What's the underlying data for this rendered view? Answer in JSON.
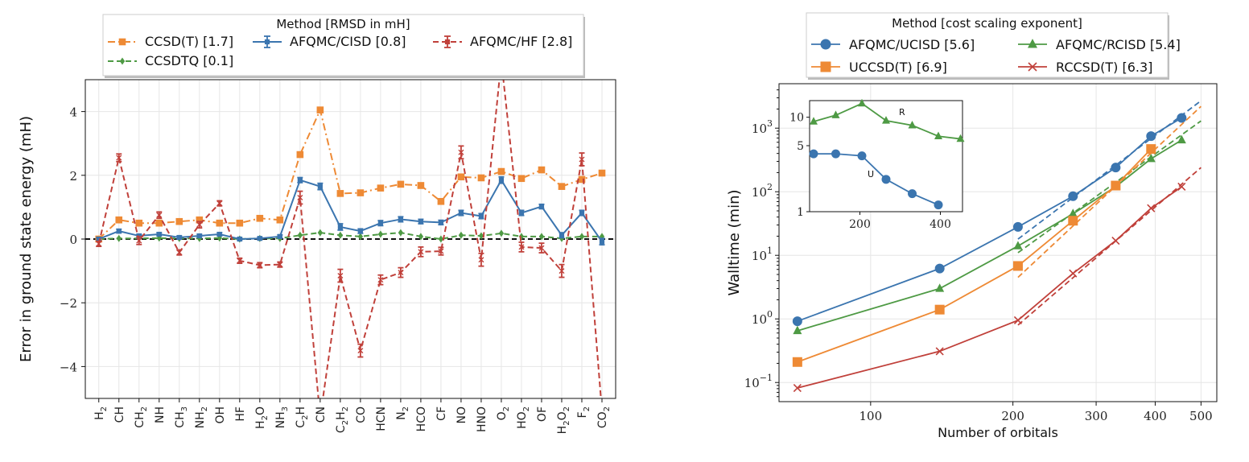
{
  "chart_data": [
    {
      "type": "line",
      "title": "",
      "xlabel": "",
      "ylabel": "Error in ground state energy (mH)",
      "ylim": [
        -5,
        5
      ],
      "yticks": [
        -4,
        -2,
        0,
        2,
        4
      ],
      "ytick_labels": [
        "−4",
        "−2",
        "0",
        "2",
        "4"
      ],
      "grid": true,
      "reference_line": 0,
      "legend": {
        "title": "Method [RMSD in mH]",
        "placement": "top",
        "columns": 3,
        "entries": [
          "CCSD(T) [1.7]",
          "AFQMC/CISD [0.8]",
          "AFQMC/HF [2.8]",
          "CCSDTQ [0.1]"
        ]
      },
      "categories": [
        {
          "base": "H",
          "sub": "2"
        },
        {
          "base": "CH",
          "sub": ""
        },
        {
          "base": "CH",
          "sub": "2"
        },
        {
          "base": "NH",
          "sub": ""
        },
        {
          "base": "CH",
          "sub": "3"
        },
        {
          "base": "NH",
          "sub": "2"
        },
        {
          "base": "OH",
          "sub": ""
        },
        {
          "base": "HF",
          "sub": ""
        },
        {
          "base": "H",
          "sub": "2",
          "tail": "O"
        },
        {
          "base": "NH",
          "sub": "3"
        },
        {
          "base": "C",
          "sub": "2",
          "tail": "H"
        },
        {
          "base": "CN",
          "sub": ""
        },
        {
          "base": "C",
          "sub": "2",
          "tail": "H",
          "sub2": "2"
        },
        {
          "base": "CO",
          "sub": ""
        },
        {
          "base": "HCN",
          "sub": ""
        },
        {
          "base": "N",
          "sub": "2"
        },
        {
          "base": "HCO",
          "sub": ""
        },
        {
          "base": "CF",
          "sub": ""
        },
        {
          "base": "NO",
          "sub": ""
        },
        {
          "base": "HNO",
          "sub": ""
        },
        {
          "base": "O",
          "sub": "2"
        },
        {
          "base": "HO",
          "sub": "2"
        },
        {
          "base": "OF",
          "sub": ""
        },
        {
          "base": "H",
          "sub": "2",
          "tail": "O",
          "sub2": "2"
        },
        {
          "base": "F",
          "sub": "2"
        },
        {
          "base": "CO",
          "sub": "2"
        }
      ],
      "series": [
        {
          "name": "CCSD(T) [1.7]",
          "color": "#ee8a35",
          "marker": "square",
          "dash": "dashdot",
          "values": [
            0.0,
            0.6,
            0.5,
            0.5,
            0.55,
            0.6,
            0.5,
            0.5,
            0.65,
            0.6,
            2.65,
            4.05,
            1.43,
            1.45,
            1.6,
            1.72,
            1.68,
            1.18,
            1.95,
            1.92,
            2.12,
            1.9,
            2.17,
            1.65,
            1.87,
            2.07
          ]
        },
        {
          "name": "AFQMC/CISD [0.8]",
          "color": "#3b75af",
          "marker": "I",
          "dash": "solid",
          "values": [
            0.0,
            0.25,
            0.1,
            0.15,
            0.05,
            0.1,
            0.15,
            0.0,
            0.02,
            0.08,
            1.85,
            1.65,
            0.38,
            0.25,
            0.5,
            0.62,
            0.55,
            0.52,
            0.82,
            0.72,
            1.85,
            0.82,
            1.02,
            0.12,
            0.82,
            -0.08
          ],
          "errors": [
            0.05,
            0.06,
            0.05,
            0.05,
            0.05,
            0.05,
            0.05,
            0.04,
            0.04,
            0.05,
            0.08,
            0.1,
            0.1,
            0.07,
            0.08,
            0.08,
            0.07,
            0.07,
            0.08,
            0.08,
            0.1,
            0.08,
            0.07,
            0.08,
            0.08,
            0.1
          ]
        },
        {
          "name": "AFQMC/HF [2.8]",
          "color": "#c0403a",
          "marker": "I",
          "dash": "dashed",
          "values": [
            -0.15,
            2.55,
            -0.05,
            0.75,
            -0.42,
            0.45,
            1.12,
            -0.68,
            -0.82,
            -0.8,
            1.3,
            -5.6,
            -1.15,
            -3.5,
            -1.28,
            -1.05,
            -0.4,
            -0.38,
            2.72,
            -0.65,
            5.6,
            -0.25,
            -0.28,
            -1.0,
            2.5,
            -5.4
          ],
          "errors": [
            0.08,
            0.12,
            0.12,
            0.1,
            0.08,
            0.1,
            0.08,
            0.08,
            0.08,
            0.08,
            0.2,
            0.3,
            0.2,
            0.2,
            0.15,
            0.15,
            0.15,
            0.12,
            0.2,
            0.2,
            0.3,
            0.15,
            0.15,
            0.2,
            0.2,
            0.3
          ]
        },
        {
          "name": "CCSDTQ [0.1]",
          "color": "#4e9a44",
          "marker": "diamond",
          "dash": "dashed",
          "values": [
            0.0,
            0.02,
            0.02,
            0.03,
            0.02,
            0.02,
            0.03,
            0.0,
            0.02,
            0.02,
            0.12,
            0.2,
            0.12,
            0.08,
            0.15,
            0.2,
            0.08,
            0.0,
            0.12,
            0.1,
            0.18,
            0.08,
            0.08,
            0.02,
            0.08,
            0.08
          ]
        }
      ]
    },
    {
      "type": "line",
      "title": "",
      "xlabel": "Number of orbitals",
      "ylabel": "Walltime (min)",
      "xscale": "log",
      "yscale": "log",
      "xlim": [
        64,
        540
      ],
      "ylim": [
        0.05,
        5000
      ],
      "xticks": [
        100,
        200,
        300,
        400,
        500
      ],
      "xtick_labels": [
        "100",
        "200",
        "300",
        "400",
        "500"
      ],
      "yticks": [
        0.1,
        1,
        10,
        100,
        1000
      ],
      "ytick_labels": [
        {
          "b": "10",
          "e": "−1"
        },
        {
          "b": "10",
          "e": "0"
        },
        {
          "b": "10",
          "e": "1"
        },
        {
          "b": "10",
          "e": "2"
        },
        {
          "b": "10",
          "e": "3"
        }
      ],
      "grid": true,
      "legend": {
        "title": "Method [cost scaling exponent]",
        "placement": "top",
        "columns": 2,
        "entries": [
          "AFQMC/UCISD [5.6]",
          "AFQMC/RCISD [5.4]",
          "UCCSD(T) [6.9]",
          "RCCSD(T) [6.3]"
        ]
      },
      "series": [
        {
          "name": "AFQMC/UCISD [5.6]",
          "color": "#3b75af",
          "marker": "circle",
          "x": [
            70,
            140,
            205,
            268,
            330,
            392,
            455
          ],
          "values": [
            0.92,
            6.2,
            28,
            85,
            240,
            750,
            1450
          ],
          "fit": {
            "x": [
              205,
              500
            ],
            "values": [
              18,
              2700
            ]
          }
        },
        {
          "name": "AFQMC/RCISD [5.4]",
          "color": "#4e9a44",
          "marker": "triangle",
          "x": [
            70,
            140,
            205,
            268,
            330,
            392,
            455
          ],
          "values": [
            0.65,
            3.0,
            14,
            45,
            120,
            330,
            650
          ],
          "fit": {
            "x": [
              205,
              500
            ],
            "values": [
              11,
              1300
            ]
          }
        },
        {
          "name": "UCCSD(T) [6.9]",
          "color": "#ee8a35",
          "marker": "square",
          "x": [
            70,
            140,
            205,
            268,
            330,
            392
          ],
          "values": [
            0.21,
            1.4,
            6.8,
            35,
            125,
            470
          ],
          "fit": {
            "x": [
              205,
              500
            ],
            "values": [
              4.5,
              2200
            ]
          }
        },
        {
          "name": "RCCSD(T) [6.3]",
          "color": "#c0403a",
          "marker": "x",
          "x": [
            70,
            140,
            205,
            268,
            330,
            392,
            455
          ],
          "values": [
            0.082,
            0.31,
            0.95,
            5.2,
            17,
            55,
            120
          ],
          "fit": {
            "x": [
              205,
              500
            ],
            "values": [
              0.8,
              240
            ]
          }
        }
      ],
      "inset": {
        "xlim": [
          75,
          455
        ],
        "ylim": [
          1,
          15
        ],
        "xticks": [
          200,
          400
        ],
        "yticks": [
          1,
          5,
          10
        ],
        "annotations": [
          {
            "text": "R"
          },
          {
            "text": "U"
          }
        ],
        "series": [
          {
            "name": "R",
            "color": "#4e9a44",
            "marker": "triangle",
            "x": [
              85,
              140,
              205,
              265,
              330,
              395,
              450
            ],
            "values": [
              9,
              10.5,
              14,
              9.2,
              8.2,
              6.3,
              5.9
            ]
          },
          {
            "name": "U",
            "color": "#3b75af",
            "marker": "circle",
            "x": [
              85,
              140,
              205,
              265,
              330,
              395
            ],
            "values": [
              4.1,
              4.1,
              3.9,
              2.2,
              1.55,
              1.18
            ]
          }
        ]
      }
    }
  ]
}
